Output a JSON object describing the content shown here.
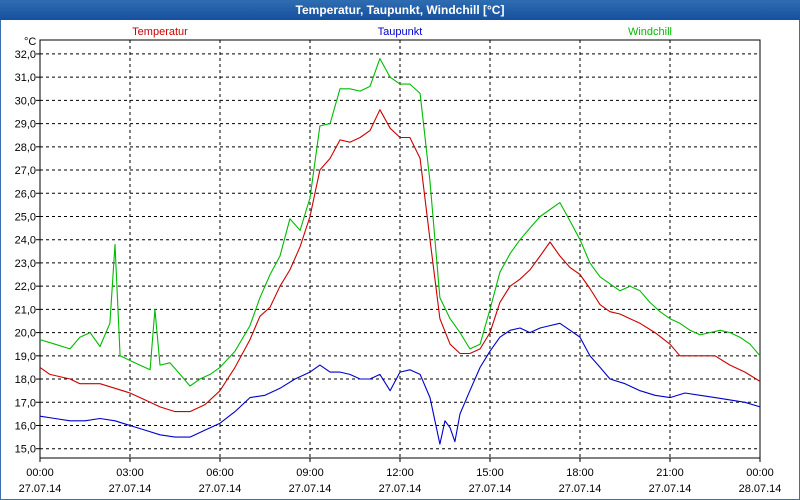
{
  "window": {
    "title": "Temperatur, Taupunkt, Windchill [°C]"
  },
  "chart_data": {
    "type": "line",
    "title": "Temperatur, Taupunkt, Windchill [°C]",
    "ylabel": "°C",
    "ylim": [
      14.6,
      32.6
    ],
    "yticks": [
      "15,0",
      "16,0",
      "17,0",
      "18,0",
      "19,0",
      "20,0",
      "21,0",
      "22,0",
      "23,0",
      "24,0",
      "25,0",
      "26,0",
      "27,0",
      "28,0",
      "29,0",
      "30,0",
      "31,0",
      "32,0"
    ],
    "xlim": [
      0,
      24
    ],
    "xticks": [
      {
        "time": "00:00",
        "date": "27.07.14"
      },
      {
        "time": "03:00",
        "date": "27.07.14"
      },
      {
        "time": "06:00",
        "date": "27.07.14"
      },
      {
        "time": "09:00",
        "date": "27.07.14"
      },
      {
        "time": "12:00",
        "date": "27.07.14"
      },
      {
        "time": "15:00",
        "date": "27.07.14"
      },
      {
        "time": "18:00",
        "date": "27.07.14"
      },
      {
        "time": "21:00",
        "date": "27.07.14"
      },
      {
        "time": "00:00",
        "date": "28.07.14"
      }
    ],
    "grid": true,
    "legend": "top",
    "series": [
      {
        "name": "Temperatur",
        "color": "#cc0000",
        "x": [
          0,
          0.33,
          1,
          1.33,
          2,
          2.5,
          3,
          3.5,
          4,
          4.5,
          5,
          5.5,
          6,
          6.5,
          7,
          7.33,
          7.67,
          8,
          8.33,
          8.67,
          9,
          9.33,
          9.67,
          10,
          10.33,
          10.67,
          11,
          11.33,
          11.67,
          12,
          12.33,
          12.67,
          13,
          13.33,
          13.67,
          14,
          14.33,
          14.67,
          15,
          15.33,
          15.67,
          16,
          16.33,
          16.67,
          17,
          17.33,
          17.67,
          18,
          18.33,
          18.67,
          19,
          19.33,
          19.67,
          20,
          20.5,
          21,
          21.33,
          21.67,
          22,
          22.5,
          23,
          23.5,
          24
        ],
        "values": [
          18.5,
          18.2,
          18.0,
          17.8,
          17.8,
          17.6,
          17.4,
          17.1,
          16.8,
          16.6,
          16.6,
          16.9,
          17.5,
          18.5,
          19.7,
          20.7,
          21.1,
          22.0,
          22.7,
          23.7,
          25.0,
          27.0,
          27.5,
          28.3,
          28.2,
          28.4,
          28.7,
          29.6,
          28.8,
          28.4,
          28.4,
          27.5,
          24.0,
          20.6,
          19.5,
          19.1,
          19.1,
          19.3,
          20.0,
          21.3,
          22.0,
          22.3,
          22.7,
          23.3,
          23.9,
          23.3,
          22.8,
          22.5,
          21.9,
          21.2,
          20.9,
          20.8,
          20.6,
          20.4,
          20.0,
          19.5,
          19.0,
          19.0,
          19.0,
          19.0,
          18.6,
          18.3,
          17.9
        ]
      },
      {
        "name": "Taupunkt",
        "color": "#0000cc",
        "x": [
          0,
          0.5,
          1,
          1.5,
          2,
          2.5,
          3,
          3.5,
          4,
          4.5,
          5,
          5.5,
          6,
          6.5,
          7,
          7.5,
          8,
          8.5,
          9,
          9.33,
          9.67,
          10,
          10.33,
          10.67,
          11,
          11.33,
          11.67,
          12,
          12.33,
          12.67,
          13,
          13.33,
          13.5,
          13.67,
          13.83,
          14,
          14.33,
          14.67,
          15,
          15.33,
          15.67,
          16,
          16.33,
          16.67,
          17,
          17.33,
          17.67,
          18,
          18.33,
          18.67,
          19,
          19.5,
          20,
          20.5,
          21,
          21.5,
          22,
          22.5,
          23,
          23.5,
          24
        ],
        "values": [
          16.4,
          16.3,
          16.2,
          16.2,
          16.3,
          16.2,
          16.0,
          15.8,
          15.6,
          15.5,
          15.5,
          15.8,
          16.1,
          16.6,
          17.2,
          17.3,
          17.6,
          18.0,
          18.3,
          18.6,
          18.3,
          18.3,
          18.2,
          18.0,
          18.0,
          18.2,
          17.5,
          18.3,
          18.4,
          18.2,
          17.2,
          15.2,
          16.2,
          15.9,
          15.3,
          16.5,
          17.5,
          18.5,
          19.2,
          19.8,
          20.1,
          20.2,
          20.0,
          20.2,
          20.3,
          20.4,
          20.1,
          19.8,
          19.0,
          18.5,
          18.0,
          17.8,
          17.5,
          17.3,
          17.2,
          17.4,
          17.3,
          17.2,
          17.1,
          17.0,
          16.8
        ]
      },
      {
        "name": "Windchill",
        "color": "#00bb00",
        "x": [
          0,
          0.5,
          1,
          1.33,
          1.67,
          2,
          2.33,
          2.5,
          2.67,
          3,
          3.33,
          3.67,
          3.83,
          4,
          4.33,
          4.67,
          5,
          5.33,
          5.67,
          6,
          6.5,
          7,
          7.33,
          7.67,
          8,
          8.33,
          8.67,
          9,
          9.33,
          9.67,
          10,
          10.33,
          10.67,
          11,
          11.33,
          11.67,
          12,
          12.33,
          12.67,
          13,
          13.33,
          13.67,
          14,
          14.33,
          14.67,
          15,
          15.33,
          15.67,
          16,
          16.33,
          16.67,
          17,
          17.33,
          17.67,
          18,
          18.33,
          18.67,
          19,
          19.33,
          19.67,
          20,
          20.33,
          20.67,
          21,
          21.33,
          21.67,
          22,
          22.33,
          22.67,
          23,
          23.33,
          23.67,
          24
        ],
        "values": [
          19.7,
          19.5,
          19.3,
          19.8,
          20.0,
          19.4,
          20.4,
          23.8,
          19.0,
          18.8,
          18.6,
          18.4,
          21.0,
          18.6,
          18.7,
          18.2,
          17.7,
          18.0,
          18.2,
          18.5,
          19.2,
          20.3,
          21.5,
          22.5,
          23.3,
          24.9,
          24.4,
          25.8,
          28.9,
          29.0,
          30.5,
          30.5,
          30.4,
          30.6,
          31.8,
          31.0,
          30.7,
          30.7,
          30.3,
          26.5,
          21.5,
          20.6,
          20.0,
          19.3,
          19.5,
          21.0,
          22.6,
          23.4,
          24.0,
          24.5,
          25.0,
          25.3,
          25.6,
          24.8,
          24.0,
          23.0,
          22.4,
          22.1,
          21.8,
          22.0,
          21.8,
          21.3,
          20.9,
          20.6,
          20.4,
          20.1,
          19.9,
          20.0,
          20.1,
          20.0,
          19.8,
          19.5,
          19.0
        ]
      }
    ]
  }
}
